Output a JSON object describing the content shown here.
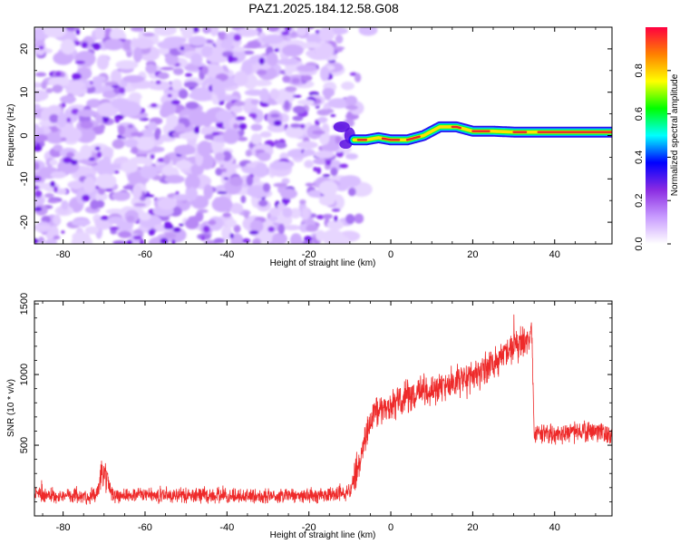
{
  "page_title": "PAZ1.2025.184.12.58.G08",
  "colors": {
    "snr_line": "#ee2a2a",
    "spectrum_ridge": "#e8262a",
    "noise_purple": "#7a22ee"
  },
  "chart_data": [
    {
      "type": "heatmap",
      "title": "",
      "xlabel": "Height of straight line (km)",
      "ylabel": "Frequency (Hz)",
      "xlim": [
        -87,
        54
      ],
      "ylim": [
        -25,
        25
      ],
      "x_ticks": [
        -80,
        -60,
        -40,
        -20,
        0,
        20,
        40
      ],
      "y_ticks": [
        -20,
        -10,
        0,
        10,
        20
      ],
      "colorbar": {
        "label": "Normalized spectral amplitude",
        "range": [
          0.0,
          1.0
        ],
        "ticks": [
          "0.0",
          "0.2",
          "0.4",
          "0.6",
          "0.8"
        ],
        "colormap": [
          "#ffffff",
          "#c89bff",
          "#8a2be2",
          "#0000ff",
          "#00ffff",
          "#00ff00",
          "#ffff00",
          "#ff8000",
          "#ff0040"
        ]
      },
      "ridge": {
        "x": [
          -9,
          -6,
          -3,
          0,
          4,
          8,
          12,
          16,
          20,
          25,
          30,
          40,
          54
        ],
        "y": [
          -1,
          -1,
          -0.5,
          -1,
          -1,
          0,
          2,
          2,
          1,
          1,
          0.8,
          0.8,
          0.8
        ]
      },
      "noise_region_x": [
        -87,
        -9
      ]
    },
    {
      "type": "line",
      "title": "",
      "xlabel": "Height of straight line (km)",
      "ylabel": "SNR (10 * v/v)",
      "xlim": [
        -87,
        54
      ],
      "ylim": [
        0,
        1520
      ],
      "x_ticks": [
        -80,
        -60,
        -40,
        -20,
        0,
        20,
        40
      ],
      "y_ticks": [
        500,
        1000,
        1500
      ],
      "series": [
        {
          "x": [
            -87,
            -80,
            -72,
            -70,
            -68,
            -60,
            -50,
            -40,
            -30,
            -20,
            -14,
            -10,
            -8,
            -6,
            -4,
            -2,
            0,
            4,
            8,
            12,
            16,
            20,
            24,
            28,
            32,
            34.5,
            35,
            36,
            40,
            45,
            50,
            54
          ],
          "values": [
            150,
            140,
            140,
            300,
            150,
            150,
            145,
            140,
            140,
            145,
            150,
            170,
            350,
            580,
            730,
            760,
            780,
            840,
            880,
            910,
            950,
            1000,
            1060,
            1150,
            1230,
            1260,
            560,
            580,
            580,
            590,
            600,
            580
          ]
        }
      ]
    }
  ]
}
